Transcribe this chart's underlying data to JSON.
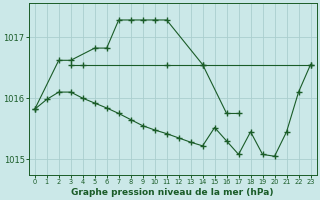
{
  "title": "Graphe pression niveau de la mer (hPa)",
  "background_color": "#cbe8e8",
  "plot_bg_color": "#cbe8e8",
  "grid_color": "#aacece",
  "line_color": "#1a5c28",
  "ylim": [
    1014.75,
    1017.55
  ],
  "yticks": [
    1015,
    1016,
    1017
  ],
  "xlim": [
    -0.5,
    23.5
  ],
  "series_a_x": [
    0,
    2,
    3,
    5,
    6,
    7,
    8,
    9,
    10,
    11,
    14,
    16,
    17
  ],
  "series_a_y": [
    1015.82,
    1016.62,
    1016.62,
    1016.82,
    1016.82,
    1017.28,
    1017.28,
    1017.28,
    1017.28,
    1017.28,
    1016.55,
    1015.75,
    1015.75
  ],
  "series_b_x": [
    3,
    4,
    11,
    14,
    23
  ],
  "series_b_y": [
    1016.55,
    1016.55,
    1016.55,
    1016.55,
    1016.55
  ],
  "series_c_x": [
    0,
    1,
    2,
    3,
    4,
    5,
    6,
    7,
    8,
    9,
    10,
    11,
    12,
    13,
    14,
    15,
    16,
    17,
    18,
    19,
    20,
    21,
    22,
    23
  ],
  "series_c_y": [
    1015.82,
    1015.98,
    1016.1,
    1016.1,
    1016.0,
    1015.92,
    1015.84,
    1015.75,
    1015.65,
    1015.55,
    1015.48,
    1015.42,
    1015.35,
    1015.28,
    1015.22,
    1015.52,
    1015.3,
    1015.08,
    1015.45,
    1015.08,
    1015.05,
    1015.45,
    1016.1,
    1016.55
  ]
}
